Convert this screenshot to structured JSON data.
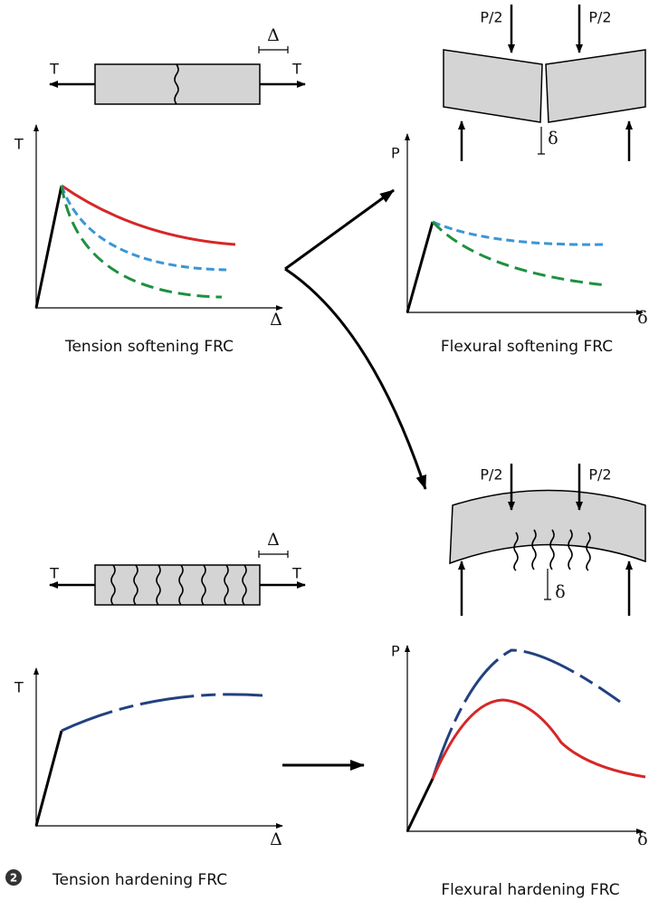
{
  "tension_softening": {
    "force_left": "T",
    "force_right": "T",
    "displacement": "Δ",
    "y_axis": "T",
    "x_axis": "Δ",
    "label": "Tension softening FRC"
  },
  "flexural_softening": {
    "load_left": "P/2",
    "load_right": "P/2",
    "deflection": "δ",
    "y_axis": "P",
    "x_axis": "δ",
    "label": "Flexural softening FRC"
  },
  "tension_hardening": {
    "force_left": "T",
    "force_right": "T",
    "displacement": "Δ",
    "y_axis": "T",
    "x_axis": "Δ",
    "label": "Tension hardening FRC"
  },
  "flexural_hardening": {
    "load_left": "P/2",
    "load_right": "P/2",
    "deflection": "δ",
    "y_axis": "P",
    "x_axis": "δ",
    "label": "Flexural hardening FRC"
  },
  "badge": "2"
}
